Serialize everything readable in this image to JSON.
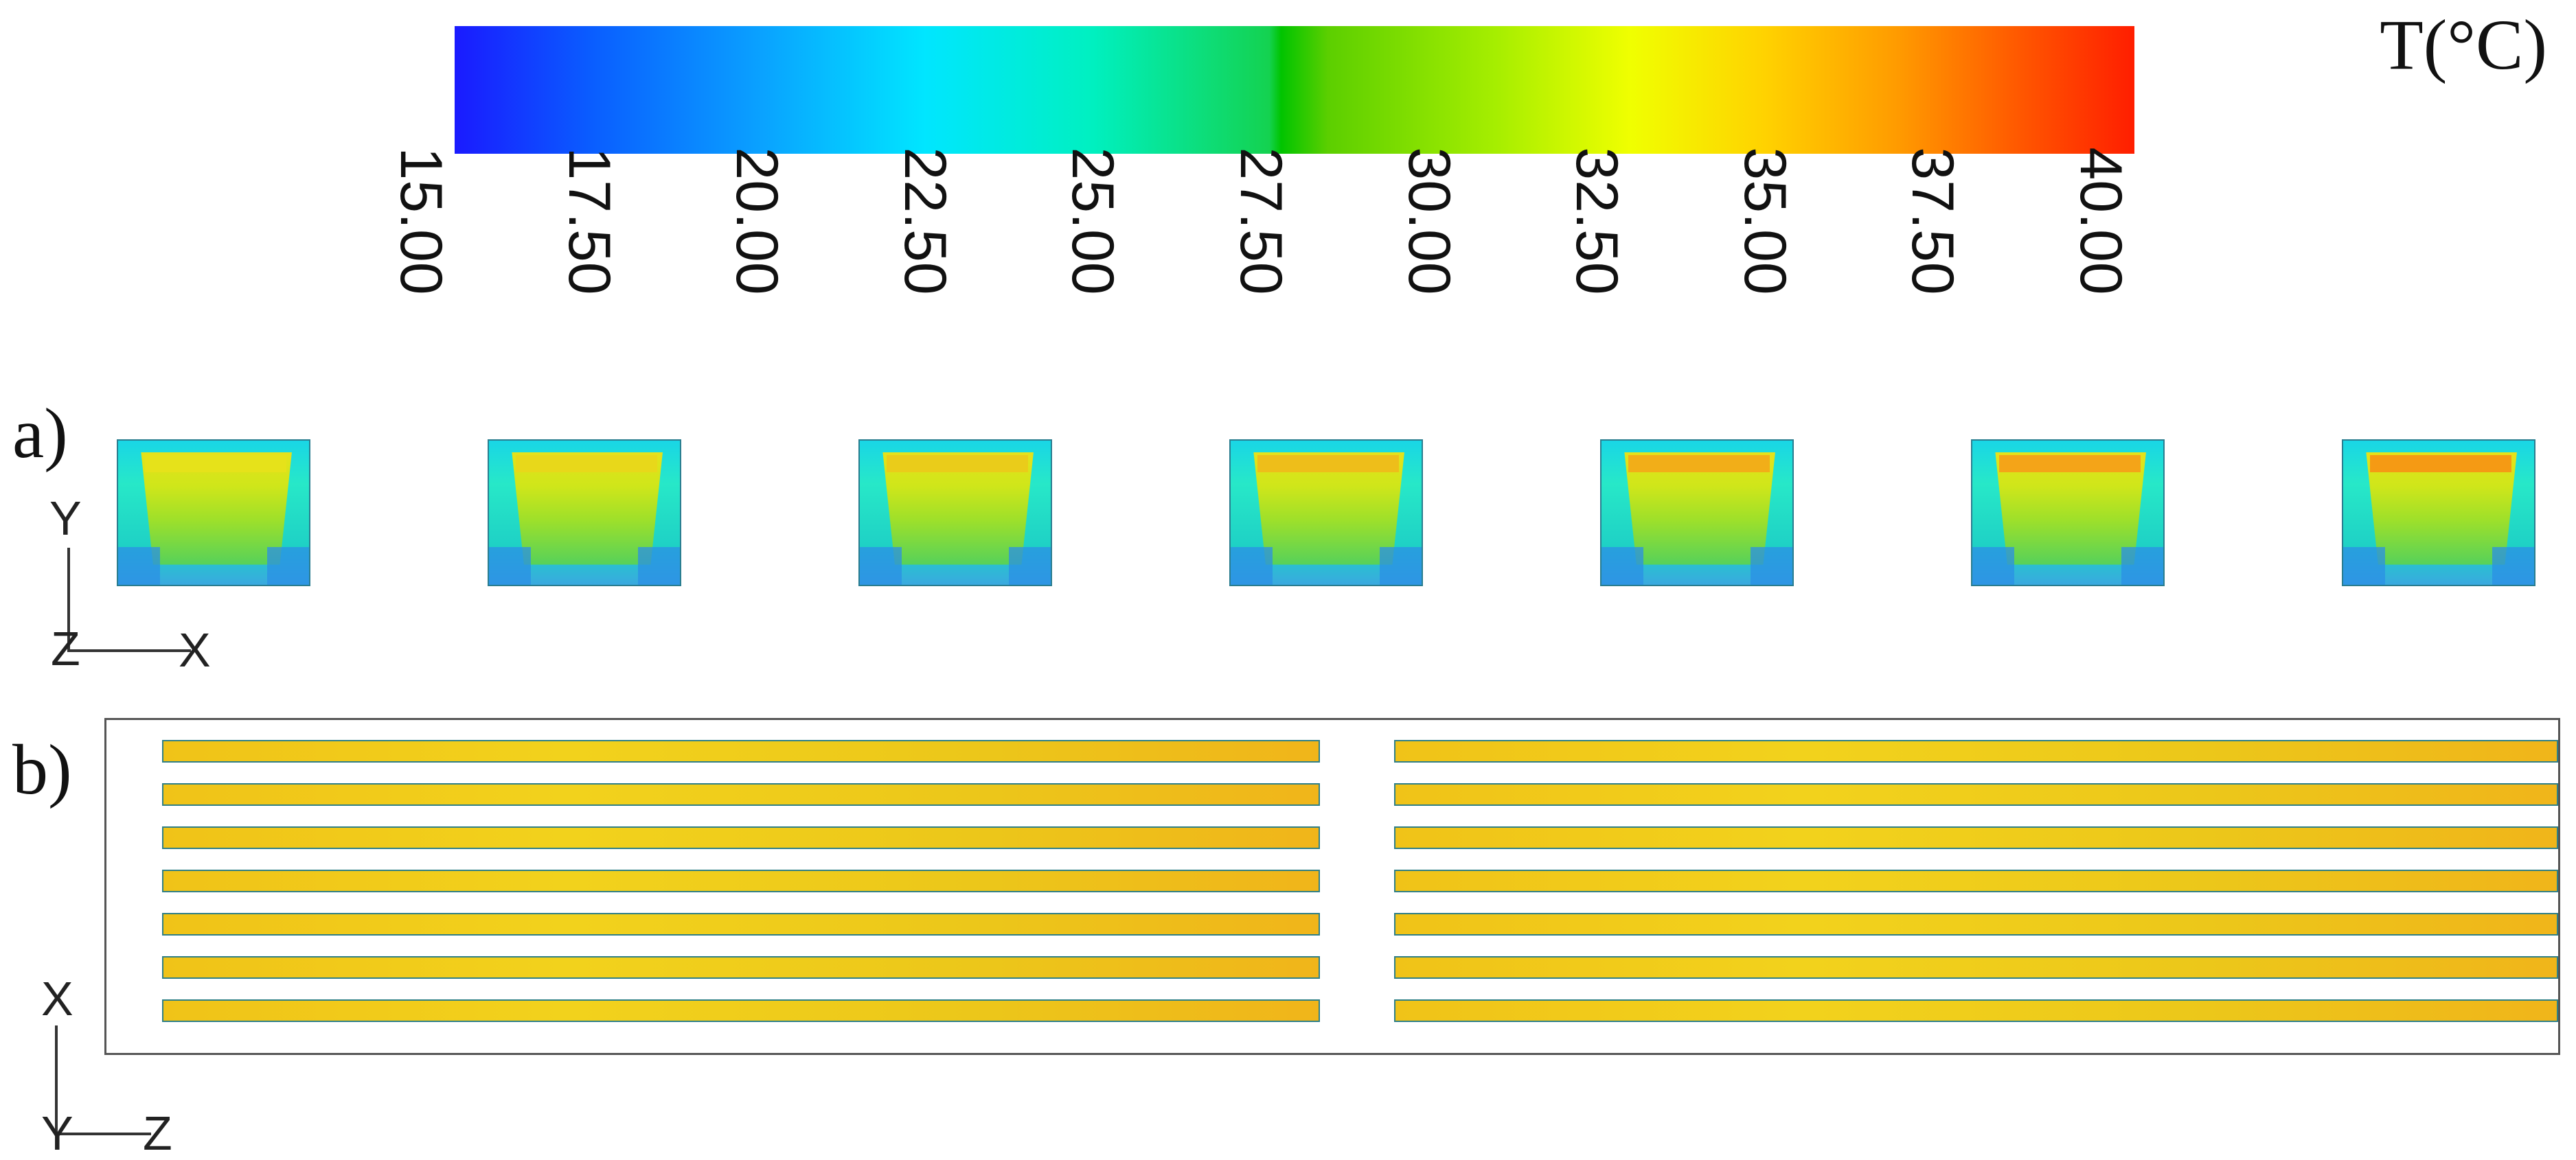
{
  "colorbar": {
    "units_label": "T(°C)",
    "ticks": [
      "15.00",
      "17.50",
      "20.00",
      "22.50",
      "25.00",
      "27.50",
      "30.00",
      "32.50",
      "35.00",
      "37.50",
      "40.00"
    ],
    "range": [
      15.0,
      40.0
    ],
    "colors": [
      "#1a1aff",
      "#00e6ff",
      "#00c400",
      "#f0ff00",
      "#ff9a00",
      "#ff1e00"
    ]
  },
  "panel_a": {
    "label": "a)",
    "axes": {
      "vertical": "Y",
      "horizontal": "X",
      "origin": "Z"
    },
    "cross_sections": [
      {
        "top_band_color": "#e6e21a"
      },
      {
        "top_band_color": "#e8d81a"
      },
      {
        "top_band_color": "#eacc1a"
      },
      {
        "top_band_color": "#eebe1a"
      },
      {
        "top_band_color": "#f2ae18"
      },
      {
        "top_band_color": "#f4a418"
      },
      {
        "top_band_color": "#f59a14"
      }
    ]
  },
  "panel_b": {
    "label": "b)",
    "axes": {
      "vertical": "X",
      "horizontal": "Z",
      "origin": "Y"
    },
    "rows_per_side": 7,
    "sides": 2,
    "bar_color": "#f2d21c"
  }
}
